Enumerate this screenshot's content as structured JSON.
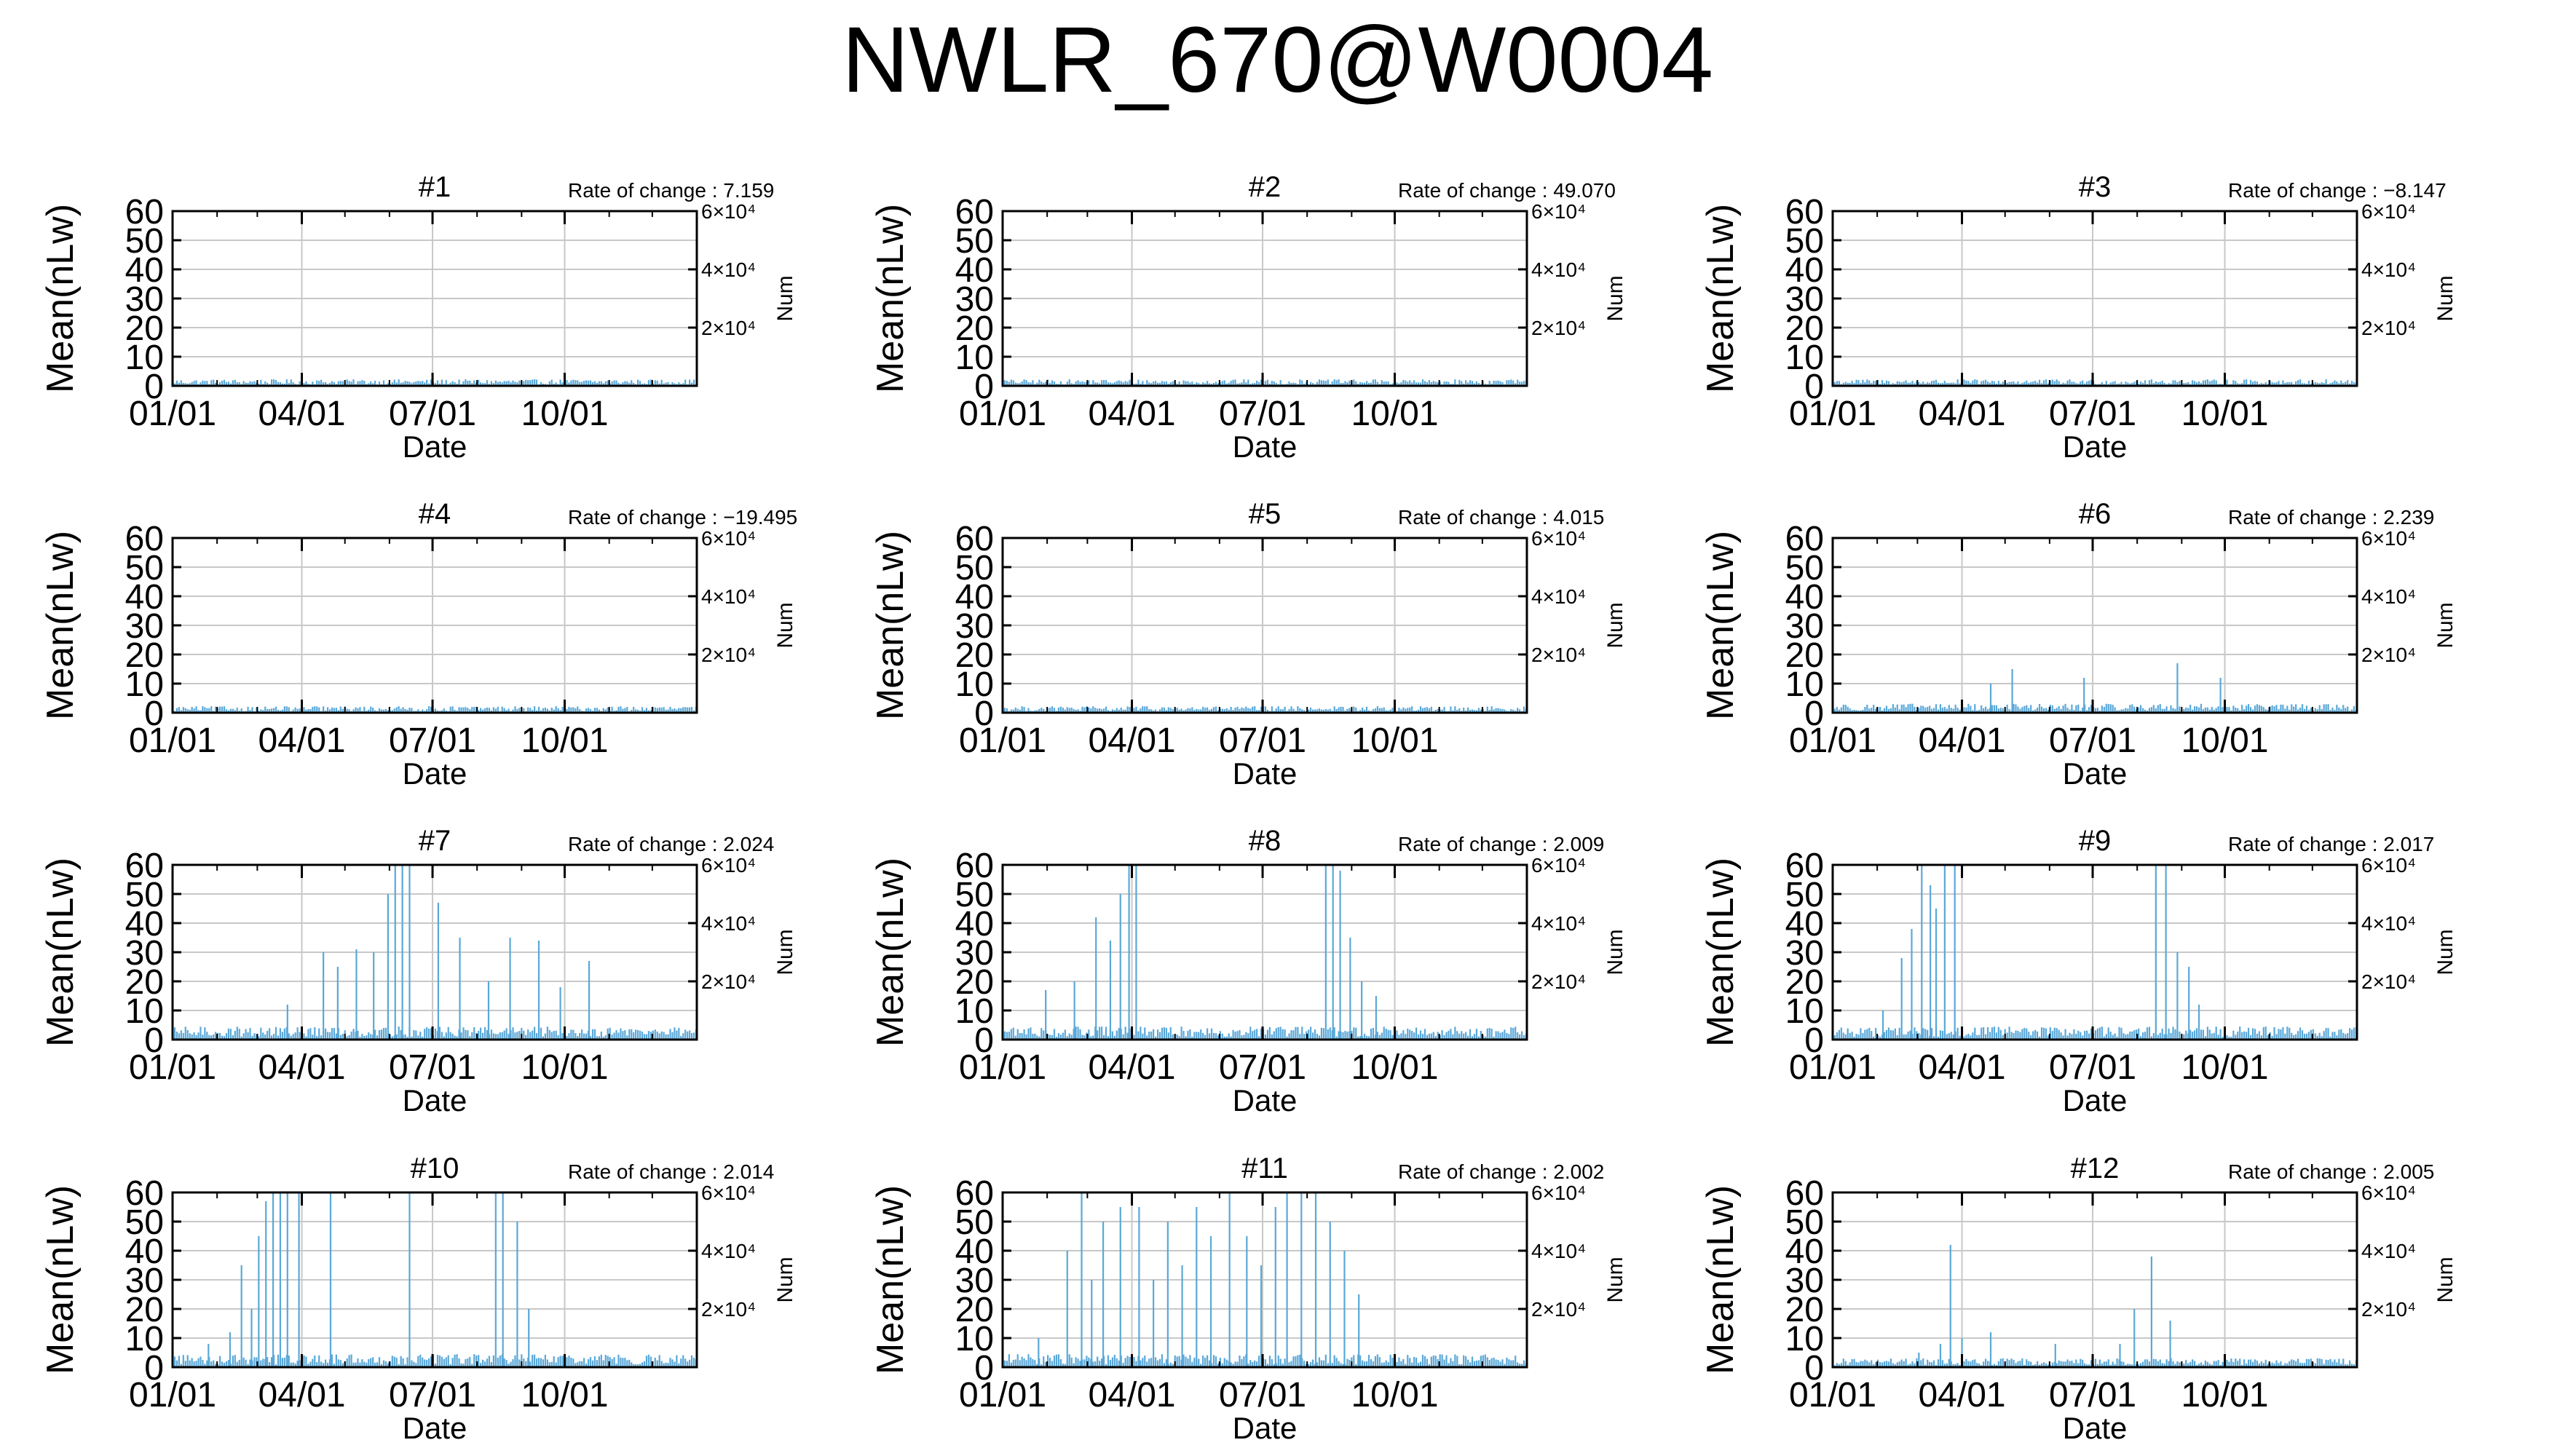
{
  "page": {
    "title": "NWLR_670@W0004"
  },
  "colors": {
    "series": "#5aa8d8",
    "grid": "#c8c8c8",
    "frame": "#000000"
  },
  "axes": {
    "xlabel": "Date",
    "ylabel_left": "Mean(nLw)",
    "ylabel_right": "Num",
    "x_ticks": [
      "01/01",
      "04/01",
      "07/01",
      "10/01"
    ],
    "y_ticks": [
      "0",
      "10",
      "20",
      "30",
      "40",
      "50",
      "60"
    ],
    "y2_ticks": [
      "2×10⁴",
      "4×10⁴",
      "6×10⁴"
    ],
    "ylim": [
      0,
      60
    ],
    "y2lim": [
      0,
      60000
    ],
    "x_domain_days": [
      0,
      365
    ],
    "grid": true
  },
  "rate_prefix": "Rate of change : ",
  "chart_data": [
    {
      "type": "bar",
      "title": "#1",
      "rate_of_change": "7.159",
      "level": "flat",
      "peaks": []
    },
    {
      "type": "bar",
      "title": "#2",
      "rate_of_change": "49.070",
      "level": "flat",
      "peaks": []
    },
    {
      "type": "bar",
      "title": "#3",
      "rate_of_change": "−8.147",
      "level": "flat",
      "peaks": []
    },
    {
      "type": "bar",
      "title": "#4",
      "rate_of_change": "−19.495",
      "level": "flat",
      "peaks": []
    },
    {
      "type": "bar",
      "title": "#5",
      "rate_of_change": "4.015",
      "level": "flat",
      "peaks": []
    },
    {
      "type": "bar",
      "title": "#6",
      "rate_of_change": "2.239",
      "level": "low",
      "peaks": [
        {
          "day": 110,
          "value": 10
        },
        {
          "day": 125,
          "value": 15
        },
        {
          "day": 175,
          "value": 12
        },
        {
          "day": 240,
          "value": 17
        },
        {
          "day": 270,
          "value": 12
        }
      ]
    },
    {
      "type": "bar",
      "title": "#7",
      "rate_of_change": "2.024",
      "level": "medium",
      "peaks": [
        {
          "day": 80,
          "value": 12
        },
        {
          "day": 105,
          "value": 30
        },
        {
          "day": 115,
          "value": 25
        },
        {
          "day": 128,
          "value": 31
        },
        {
          "day": 140,
          "value": 30
        },
        {
          "day": 150,
          "value": 50
        },
        {
          "day": 155,
          "value": 60
        },
        {
          "day": 160,
          "value": 60
        },
        {
          "day": 165,
          "value": 60
        },
        {
          "day": 185,
          "value": 47
        },
        {
          "day": 200,
          "value": 35
        },
        {
          "day": 220,
          "value": 20
        },
        {
          "day": 235,
          "value": 35
        },
        {
          "day": 255,
          "value": 34
        },
        {
          "day": 270,
          "value": 18
        },
        {
          "day": 290,
          "value": 27
        }
      ]
    },
    {
      "type": "bar",
      "title": "#8",
      "rate_of_change": "2.009",
      "level": "medium",
      "peaks": [
        {
          "day": 30,
          "value": 17
        },
        {
          "day": 50,
          "value": 20
        },
        {
          "day": 65,
          "value": 42
        },
        {
          "day": 75,
          "value": 34
        },
        {
          "day": 82,
          "value": 50
        },
        {
          "day": 88,
          "value": 60
        },
        {
          "day": 93,
          "value": 60
        },
        {
          "day": 225,
          "value": 60
        },
        {
          "day": 230,
          "value": 60
        },
        {
          "day": 235,
          "value": 58
        },
        {
          "day": 242,
          "value": 35
        },
        {
          "day": 250,
          "value": 20
        },
        {
          "day": 260,
          "value": 15
        }
      ]
    },
    {
      "type": "bar",
      "title": "#9",
      "rate_of_change": "2.017",
      "level": "medium",
      "peaks": [
        {
          "day": 35,
          "value": 10
        },
        {
          "day": 48,
          "value": 28
        },
        {
          "day": 55,
          "value": 38
        },
        {
          "day": 62,
          "value": 60
        },
        {
          "day": 68,
          "value": 53
        },
        {
          "day": 72,
          "value": 45
        },
        {
          "day": 78,
          "value": 60
        },
        {
          "day": 85,
          "value": 60
        },
        {
          "day": 225,
          "value": 60
        },
        {
          "day": 232,
          "value": 60
        },
        {
          "day": 240,
          "value": 30
        },
        {
          "day": 248,
          "value": 25
        },
        {
          "day": 255,
          "value": 12
        }
      ]
    },
    {
      "type": "bar",
      "title": "#10",
      "rate_of_change": "2.014",
      "level": "medium",
      "peaks": [
        {
          "day": 25,
          "value": 8
        },
        {
          "day": 40,
          "value": 12
        },
        {
          "day": 48,
          "value": 35
        },
        {
          "day": 55,
          "value": 20
        },
        {
          "day": 60,
          "value": 45
        },
        {
          "day": 65,
          "value": 57
        },
        {
          "day": 70,
          "value": 60
        },
        {
          "day": 75,
          "value": 60
        },
        {
          "day": 80,
          "value": 60
        },
        {
          "day": 88,
          "value": 60
        },
        {
          "day": 110,
          "value": 60
        },
        {
          "day": 165,
          "value": 60
        },
        {
          "day": 225,
          "value": 60
        },
        {
          "day": 230,
          "value": 60
        },
        {
          "day": 240,
          "value": 50
        },
        {
          "day": 248,
          "value": 20
        }
      ]
    },
    {
      "type": "bar",
      "title": "#11",
      "rate_of_change": "2.002",
      "level": "medium",
      "peaks": [
        {
          "day": 25,
          "value": 10
        },
        {
          "day": 45,
          "value": 40
        },
        {
          "day": 55,
          "value": 60
        },
        {
          "day": 62,
          "value": 30
        },
        {
          "day": 70,
          "value": 50
        },
        {
          "day": 82,
          "value": 55
        },
        {
          "day": 95,
          "value": 55
        },
        {
          "day": 105,
          "value": 30
        },
        {
          "day": 115,
          "value": 50
        },
        {
          "day": 125,
          "value": 35
        },
        {
          "day": 135,
          "value": 55
        },
        {
          "day": 145,
          "value": 45
        },
        {
          "day": 158,
          "value": 60
        },
        {
          "day": 170,
          "value": 45
        },
        {
          "day": 180,
          "value": 35
        },
        {
          "day": 190,
          "value": 55
        },
        {
          "day": 198,
          "value": 60
        },
        {
          "day": 208,
          "value": 60
        },
        {
          "day": 218,
          "value": 60
        },
        {
          "day": 228,
          "value": 50
        },
        {
          "day": 238,
          "value": 40
        },
        {
          "day": 248,
          "value": 25
        }
      ]
    },
    {
      "type": "bar",
      "title": "#12",
      "rate_of_change": "2.005",
      "level": "low",
      "peaks": [
        {
          "day": 60,
          "value": 5
        },
        {
          "day": 75,
          "value": 8
        },
        {
          "day": 82,
          "value": 42
        },
        {
          "day": 90,
          "value": 10
        },
        {
          "day": 110,
          "value": 12
        },
        {
          "day": 155,
          "value": 8
        },
        {
          "day": 200,
          "value": 8
        },
        {
          "day": 210,
          "value": 20
        },
        {
          "day": 222,
          "value": 38
        },
        {
          "day": 235,
          "value": 16
        }
      ]
    }
  ]
}
